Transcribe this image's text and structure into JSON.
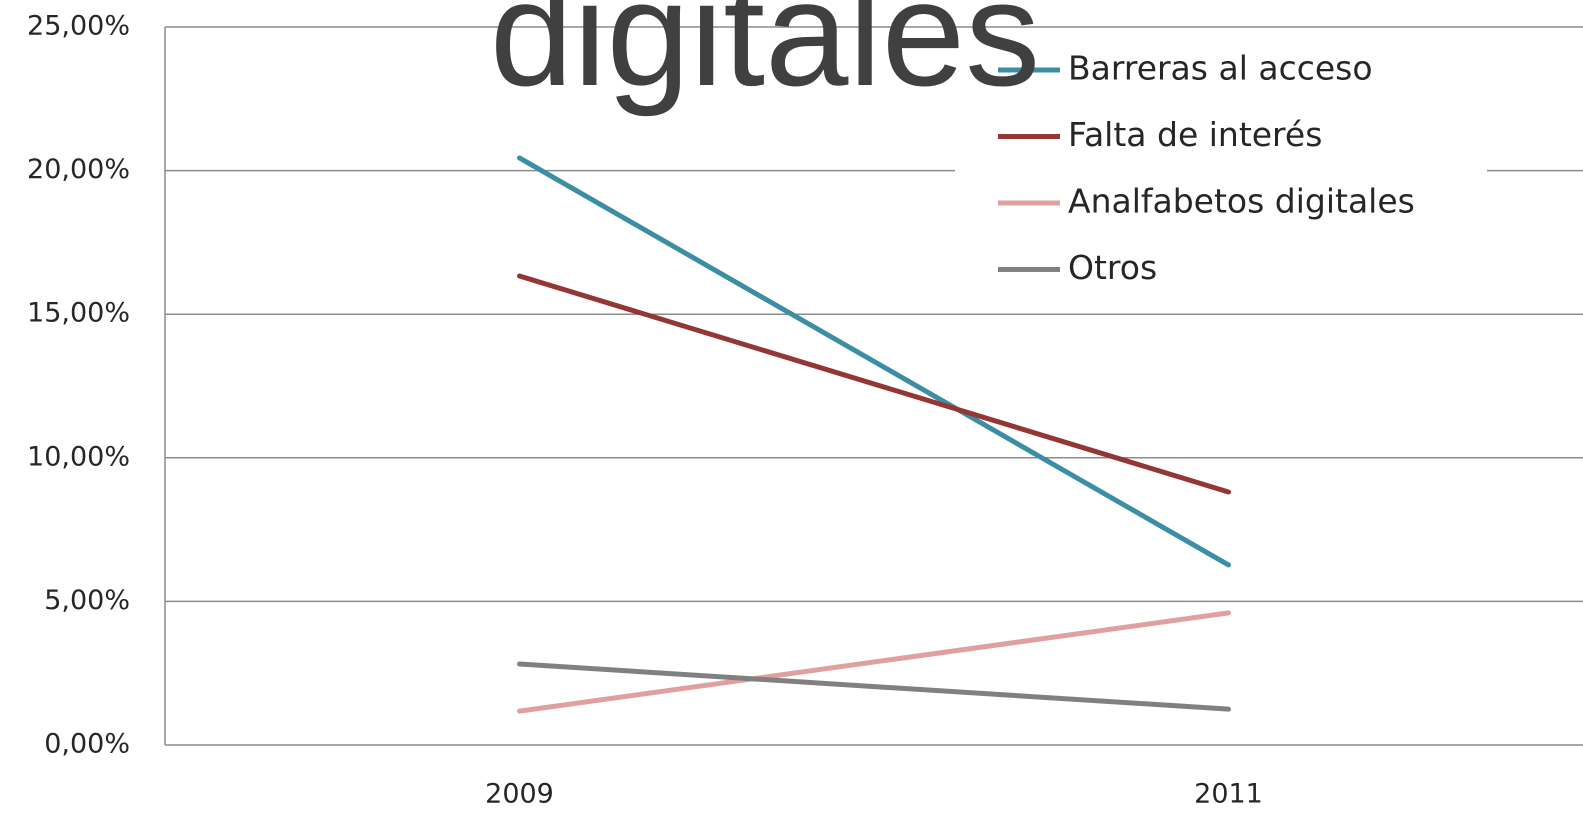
{
  "chart_data": {
    "type": "line",
    "title": "digitales",
    "categories": [
      "2009",
      "2011"
    ],
    "series": [
      {
        "name": "Barreras al acceso",
        "color": "#3b8ea3",
        "values": [
          20.44,
          6.27
        ]
      },
      {
        "name": "Falta de interés",
        "color": "#943634",
        "values": [
          16.33,
          8.81
        ]
      },
      {
        "name": "Analfabetos digitales",
        "color": "#e0a09f",
        "values": [
          1.18,
          4.6
        ]
      },
      {
        "name": "Otros",
        "color": "#808080",
        "values": [
          2.82,
          1.25
        ]
      }
    ],
    "ylim": [
      0,
      25
    ],
    "yticks": [
      {
        "value": 0,
        "label": "0,00%"
      },
      {
        "value": 5,
        "label": "5,00%"
      },
      {
        "value": 10,
        "label": "10,00%"
      },
      {
        "value": 15,
        "label": "15,00%"
      },
      {
        "value": 20,
        "label": "20,00%"
      },
      {
        "value": 25,
        "label": "25,00%"
      }
    ],
    "grid": true,
    "legend": "upper right"
  }
}
